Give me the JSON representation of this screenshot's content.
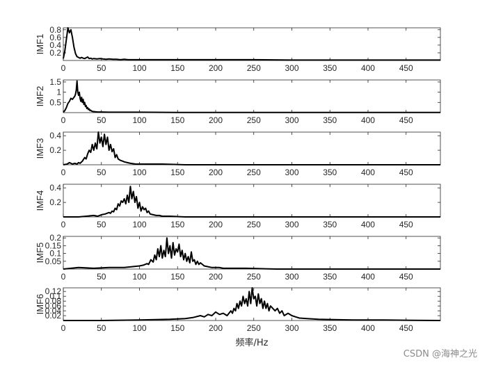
{
  "chart_data": {
    "type": "line",
    "xlabel": "频率/Hz",
    "xlim": [
      0,
      495
    ],
    "xticks": [
      0,
      50,
      100,
      150,
      200,
      250,
      300,
      350,
      400,
      450
    ],
    "panels": [
      {
        "ylabel": "IMF1",
        "ylim": [
          0,
          0.85
        ],
        "yticks": [
          0.2,
          0.4,
          0.6,
          0.8
        ],
        "series": [
          {
            "x": [
              0,
              2,
              4,
              6,
              8,
              10,
              12,
              14,
              16,
              18,
              20,
              22,
              24,
              26,
              28,
              30,
              32,
              34,
              36,
              38,
              40,
              44,
              48,
              52,
              56,
              60,
              65,
              70,
              75,
              80,
              85,
              90,
              100,
              120,
              150,
              200,
              250,
              300,
              350,
              400,
              450,
              495
            ],
            "y": [
              0.05,
              0.25,
              0.55,
              0.85,
              0.72,
              0.8,
              0.6,
              0.35,
              0.18,
              0.1,
              0.08,
              0.06,
              0.08,
              0.06,
              0.05,
              0.07,
              0.09,
              0.05,
              0.06,
              0.04,
              0.05,
              0.04,
              0.05,
              0.04,
              0.03,
              0.04,
              0.03,
              0.03,
              0.02,
              0.03,
              0.02,
              0.02,
              0.02,
              0.02,
              0.02,
              0.02,
              0.02,
              0.01,
              0.01,
              0.01,
              0.01,
              0.01
            ]
          }
        ]
      },
      {
        "ylabel": "IMF2",
        "ylim": [
          0,
          1.6
        ],
        "yticks": [
          0.5,
          1,
          1.5
        ],
        "series": [
          {
            "x": [
              0,
              2,
              4,
              6,
              8,
              10,
              12,
              14,
              15,
              16,
              17,
              18,
              19,
              20,
              21,
              22,
              23,
              24,
              25,
              26,
              27,
              28,
              29,
              30,
              31,
              32,
              33,
              34,
              35,
              36,
              37,
              38,
              40,
              42,
              45,
              50,
              60,
              80,
              100,
              150,
              200,
              250,
              300,
              350,
              400,
              450,
              495
            ],
            "y": [
              0.02,
              0.1,
              0.25,
              0.45,
              0.55,
              0.7,
              0.65,
              0.75,
              0.8,
              0.9,
              1.1,
              1.55,
              1.0,
              0.85,
              1.0,
              0.7,
              0.55,
              0.75,
              0.5,
              0.65,
              0.4,
              0.5,
              0.3,
              0.35,
              0.2,
              0.25,
              0.15,
              0.18,
              0.1,
              0.12,
              0.08,
              0.06,
              0.05,
              0.04,
              0.03,
              0.03,
              0.02,
              0.02,
              0.02,
              0.01,
              0.01,
              0.01,
              0.01,
              0.01,
              0.01,
              0.01,
              0.01
            ]
          }
        ]
      },
      {
        "ylabel": "IMF3",
        "ylim": [
          0,
          0.45
        ],
        "yticks": [
          0.2,
          0.4
        ],
        "series": [
          {
            "x": [
              0,
              5,
              8,
              10,
              12,
              15,
              18,
              20,
              22,
              25,
              28,
              30,
              32,
              34,
              36,
              38,
              40,
              42,
              44,
              46,
              48,
              50,
              52,
              54,
              56,
              58,
              60,
              62,
              64,
              66,
              68,
              70,
              72,
              75,
              78,
              80,
              84,
              88,
              95,
              110,
              130,
              160,
              200,
              250,
              300,
              350,
              400,
              450,
              495
            ],
            "y": [
              0.0,
              0.01,
              0.03,
              0.02,
              0.01,
              0.02,
              0.01,
              0.03,
              0.02,
              0.05,
              0.1,
              0.08,
              0.15,
              0.2,
              0.17,
              0.28,
              0.2,
              0.3,
              0.22,
              0.45,
              0.3,
              0.38,
              0.25,
              0.42,
              0.28,
              0.38,
              0.2,
              0.28,
              0.18,
              0.22,
              0.1,
              0.14,
              0.08,
              0.06,
              0.05,
              0.04,
              0.03,
              0.02,
              0.01,
              0.01,
              0.01,
              0.0,
              0.0,
              0.0,
              0.0,
              0.0,
              0.0,
              0.0,
              0.0
            ]
          }
        ]
      },
      {
        "ylabel": "IMF4",
        "ylim": [
          0,
          0.45
        ],
        "yticks": [
          0.2,
          0.4
        ],
        "series": [
          {
            "x": [
              0,
              10,
              20,
              30,
              40,
              45,
              50,
              55,
              60,
              62,
              64,
              66,
              68,
              70,
              72,
              74,
              76,
              78,
              80,
              82,
              84,
              86,
              88,
              90,
              92,
              94,
              96,
              98,
              100,
              102,
              104,
              106,
              108,
              110,
              112,
              114,
              118,
              122,
              126,
              130,
              140,
              160,
              200,
              250,
              300,
              350,
              400,
              450,
              495
            ],
            "y": [
              0.0,
              0.0,
              0.0,
              0.01,
              0.02,
              0.01,
              0.03,
              0.04,
              0.06,
              0.05,
              0.08,
              0.07,
              0.12,
              0.1,
              0.18,
              0.15,
              0.22,
              0.2,
              0.25,
              0.18,
              0.3,
              0.2,
              0.42,
              0.25,
              0.35,
              0.2,
              0.28,
              0.12,
              0.2,
              0.08,
              0.14,
              0.1,
              0.12,
              0.06,
              0.08,
              0.04,
              0.03,
              0.02,
              0.02,
              0.01,
              0.01,
              0.0,
              0.0,
              0.0,
              0.0,
              0.0,
              0.0,
              0.0,
              0.0
            ]
          }
        ]
      },
      {
        "ylabel": "IMF5",
        "ylim": [
          0,
          0.21
        ],
        "yticks": [
          0.05,
          0.1,
          0.15,
          0.2
        ],
        "series": [
          {
            "x": [
              0,
              20,
              40,
              60,
              80,
              90,
              100,
              105,
              110,
              112,
              115,
              118,
              120,
              122,
              124,
              126,
              128,
              130,
              132,
              134,
              136,
              138,
              140,
              142,
              144,
              146,
              148,
              150,
              152,
              154,
              156,
              158,
              160,
              162,
              164,
              166,
              168,
              170,
              172,
              174,
              176,
              178,
              180,
              185,
              190,
              195,
              200,
              205,
              210,
              220,
              240,
              280,
              320,
              360,
              400,
              450,
              495
            ],
            "y": [
              0.0,
              0.01,
              0.005,
              0.01,
              0.01,
              0.015,
              0.02,
              0.025,
              0.035,
              0.03,
              0.06,
              0.045,
              0.09,
              0.06,
              0.13,
              0.08,
              0.15,
              0.07,
              0.12,
              0.08,
              0.2,
              0.1,
              0.15,
              0.07,
              0.17,
              0.09,
              0.13,
              0.11,
              0.16,
              0.08,
              0.12,
              0.06,
              0.1,
              0.05,
              0.08,
              0.04,
              0.11,
              0.05,
              0.06,
              0.03,
              0.05,
              0.03,
              0.04,
              0.02,
              0.015,
              0.01,
              0.01,
              0.01,
              0.005,
              0.005,
              0.005,
              0.0,
              0.0,
              0.0,
              0.0,
              0.0,
              0.0
            ]
          }
        ]
      },
      {
        "ylabel": "IMF6",
        "ylim": [
          0,
          0.135
        ],
        "yticks": [
          0.02,
          0.04,
          0.06,
          0.08,
          0.1,
          0.12
        ],
        "series": [
          {
            "x": [
              0,
              50,
              100,
              140,
              160,
              170,
              180,
              185,
              190,
              195,
              200,
              205,
              210,
              215,
              220,
              222,
              224,
              226,
              228,
              230,
              232,
              234,
              236,
              238,
              240,
              242,
              244,
              246,
              248,
              250,
              252,
              254,
              256,
              258,
              260,
              262,
              264,
              266,
              268,
              270,
              272,
              275,
              278,
              281,
              284,
              287,
              290,
              295,
              300,
              305,
              310,
              320,
              335,
              350,
              380,
              420,
              460,
              495
            ],
            "y": [
              0.0,
              0.0,
              0.002,
              0.005,
              0.008,
              0.012,
              0.02,
              0.015,
              0.025,
              0.02,
              0.035,
              0.025,
              0.03,
              0.02,
              0.04,
              0.03,
              0.05,
              0.04,
              0.07,
              0.05,
              0.08,
              0.06,
              0.1,
              0.07,
              0.09,
              0.06,
              0.12,
              0.07,
              0.135,
              0.09,
              0.1,
              0.06,
              0.11,
              0.07,
              0.09,
              0.05,
              0.08,
              0.05,
              0.07,
              0.04,
              0.06,
              0.05,
              0.04,
              0.05,
              0.03,
              0.04,
              0.02,
              0.03,
              0.02,
              0.015,
              0.01,
              0.008,
              0.005,
              0.004,
              0.002,
              0.002,
              0.001,
              0.0
            ]
          }
        ]
      }
    ]
  },
  "watermark": "CSDN @海神之光"
}
